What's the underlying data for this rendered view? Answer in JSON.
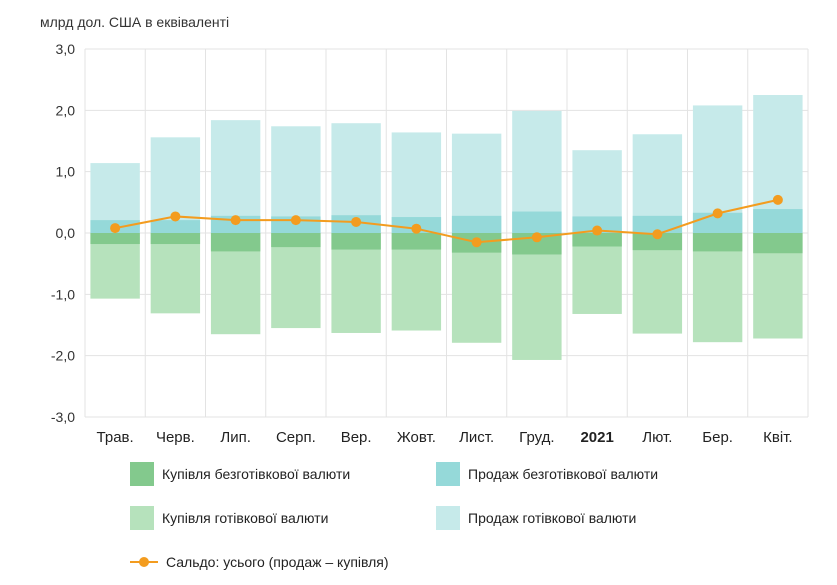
{
  "chart_data": {
    "type": "bar",
    "ylabel": "млрд дол. США в еквіваленті",
    "ylim": [
      -3.0,
      3.0
    ],
    "yticks": [
      "3,0",
      "2,0",
      "1,0",
      "0,0",
      "-1,0",
      "-2,0",
      "-3,0"
    ],
    "ytick_values": [
      3,
      2,
      1,
      0,
      -1,
      -2,
      -3
    ],
    "categories": [
      "Трав.",
      "Черв.",
      "Лип.",
      "Серп.",
      "Вер.",
      "Жовт.",
      "Лист.",
      "Груд.",
      "2021",
      "Лют.",
      "Бер.",
      "Квіт."
    ],
    "bold_category": "2021",
    "grid": true,
    "legend_position": "bottom",
    "series": [
      {
        "name": "Купівля безготівкової валюти",
        "kind": "bar-neg-inner",
        "color": "#83c98d",
        "values": [
          -0.18,
          -0.18,
          -0.3,
          -0.23,
          -0.27,
          -0.27,
          -0.32,
          -0.35,
          -0.22,
          -0.28,
          -0.3,
          -0.33
        ]
      },
      {
        "name": "Продаж безготівкової валюти",
        "kind": "bar-pos-inner",
        "color": "#95d9d9",
        "values": [
          0.21,
          0.21,
          0.28,
          0.27,
          0.29,
          0.26,
          0.28,
          0.35,
          0.27,
          0.28,
          0.33,
          0.39
        ]
      },
      {
        "name": "Купівля готівкової валюти",
        "kind": "bar-neg-total",
        "color": "#b6e2bc",
        "values": [
          -1.07,
          -1.31,
          -1.65,
          -1.55,
          -1.63,
          -1.59,
          -1.79,
          -2.07,
          -1.32,
          -1.64,
          -1.78,
          -1.72
        ]
      },
      {
        "name": "Продаж готівкової валюти",
        "kind": "bar-pos-total",
        "color": "#c6eaea",
        "values": [
          1.14,
          1.56,
          1.84,
          1.74,
          1.79,
          1.64,
          1.62,
          1.99,
          1.35,
          1.61,
          2.08,
          2.25
        ]
      },
      {
        "name": "Сальдо: усього (продаж – купівля)",
        "kind": "line",
        "color": "#f39c1f",
        "values": [
          0.08,
          0.27,
          0.21,
          0.21,
          0.18,
          0.07,
          -0.15,
          -0.07,
          0.04,
          -0.02,
          0.32,
          0.54
        ]
      }
    ]
  }
}
